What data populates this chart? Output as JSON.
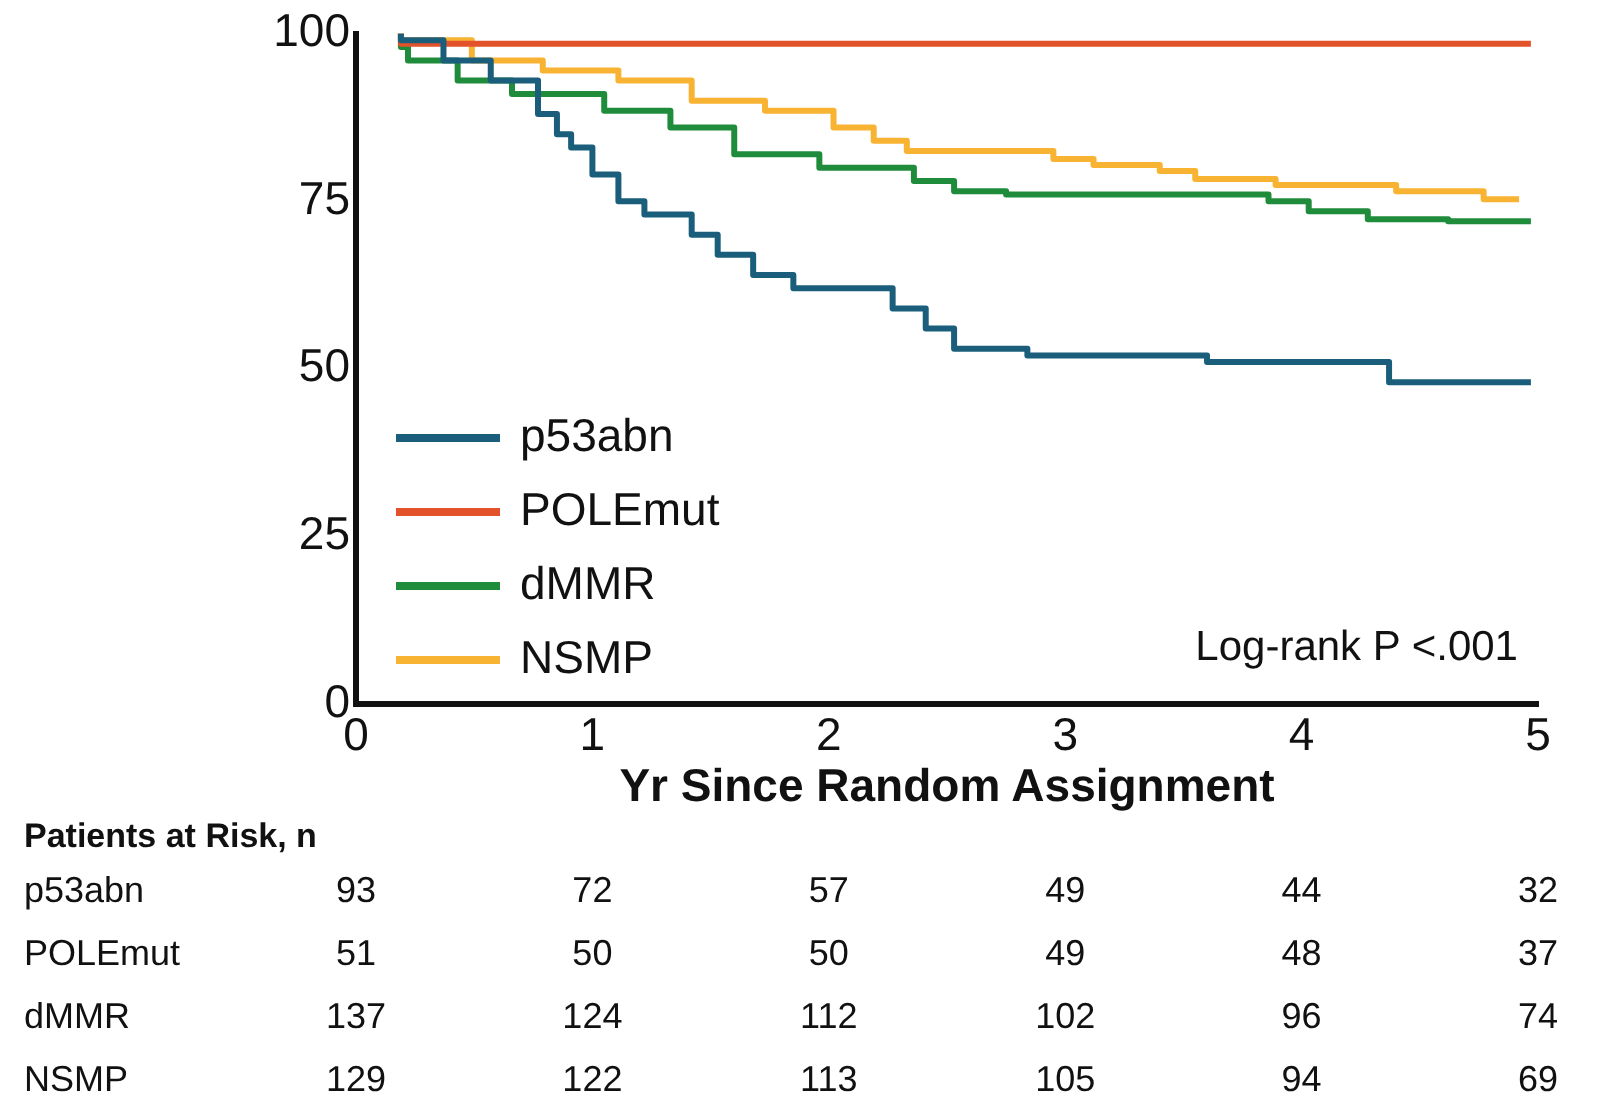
{
  "chart_data": {
    "type": "step",
    "xlabel": "Yr Since Random Assignment",
    "xlim": [
      0,
      5
    ],
    "xticks": [
      0,
      1,
      2,
      3,
      4,
      5
    ],
    "ylim": [
      0,
      100
    ],
    "yticks": [
      0,
      25,
      50,
      75,
      100
    ],
    "grid": false,
    "legend": "bottom left",
    "marker": "none",
    "line_style": "solid",
    "series": [
      {
        "name": "p53abn",
        "color": "#1b5e7b",
        "x": [
          0.19,
          0.37,
          0.57,
          0.77,
          0.85,
          0.91,
          1.0,
          1.11,
          1.22,
          1.42,
          1.53,
          1.68,
          1.85,
          1.96,
          2.27,
          2.41,
          2.53,
          2.84,
          3.6,
          4.37,
          4.4,
          4.97
        ],
        "values": [
          100,
          99,
          96,
          93,
          88,
          85,
          83,
          79,
          75,
          73,
          70,
          67,
          64,
          62,
          62,
          59,
          56,
          53,
          52,
          51,
          48,
          48
        ]
      },
      {
        "name": "POLEmut",
        "color": "#e2522b",
        "x": [
          0.19,
          0.22,
          4.97
        ],
        "values": [
          100,
          98.5,
          98.5
        ]
      },
      {
        "name": "dMMR",
        "color": "#1f8c3c",
        "x": [
          0.19,
          0.22,
          0.43,
          0.66,
          1.05,
          1.33,
          1.6,
          1.96,
          2.36,
          2.53,
          2.75,
          3.86,
          4.03,
          4.28,
          4.62,
          4.77,
          4.97
        ],
        "values": [
          100,
          98,
          96,
          93,
          91,
          88.5,
          86,
          82,
          80,
          78,
          76.5,
          76,
          75,
          73.5,
          72.3,
          72,
          72
        ]
      },
      {
        "name": "NSMP",
        "color": "#f9b333",
        "x": [
          0.19,
          0.49,
          0.79,
          1.11,
          1.42,
          1.73,
          2.02,
          2.19,
          2.33,
          2.95,
          3.12,
          3.4,
          3.55,
          3.89,
          4.4,
          4.77,
          4.85,
          4.92
        ],
        "values": [
          100,
          99,
          96,
          94.5,
          93,
          90,
          88.5,
          86,
          84,
          82.5,
          81.3,
          80.4,
          79.5,
          78.3,
          77.4,
          76.5,
          75.3,
          75.3
        ]
      }
    ],
    "annotations": [
      "Log-rank P <.001",
      "Patients at Risk, n",
      "p53abn",
      "93",
      "72",
      "57",
      "49",
      "44",
      "32",
      "POLEmut",
      "51",
      "50",
      "50",
      "49",
      "48",
      "37",
      "dMMR",
      "137",
      "124",
      "112",
      "102",
      "96",
      "74",
      "NSMP",
      "129",
      "122",
      "113",
      "105",
      "94",
      "69"
    ]
  }
}
